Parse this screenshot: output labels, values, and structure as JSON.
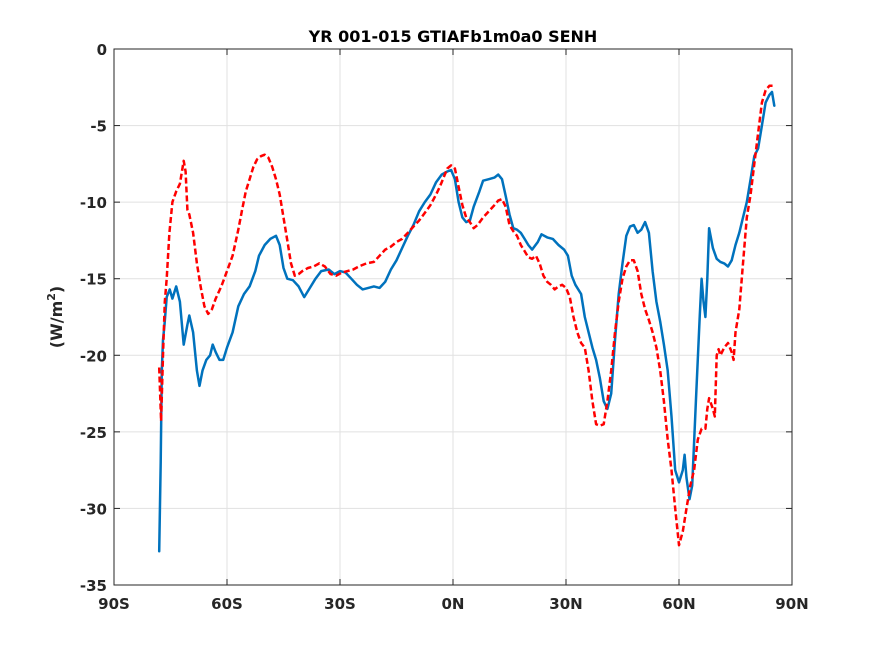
{
  "chart_data": {
    "type": "line",
    "title": "YR 001-015 GTIAFb1m0a0 SENH",
    "xlabel": "",
    "ylabel": "(W/m",
    "ylabel_sup": "2",
    "ylabel_tail": ")",
    "xlim": [
      -90,
      90
    ],
    "ylim": [
      -35,
      0
    ],
    "xticks": [
      -90,
      -60,
      -30,
      0,
      30,
      60,
      90
    ],
    "xtick_labels": [
      "90S",
      "60S",
      "30S",
      "0N",
      "30N",
      "60N",
      "90N"
    ],
    "yticks": [
      0,
      -5,
      -10,
      -15,
      -20,
      -25,
      -30,
      -35
    ],
    "ytick_labels": [
      "0",
      "-5",
      "-10",
      "-15",
      "-20",
      "-25",
      "-30",
      "-35"
    ],
    "grid": true,
    "series": [
      {
        "color": "#0072BD",
        "style": "solid",
        "points": [
          [
            -78,
            -32.8
          ],
          [
            -77.6,
            -27
          ],
          [
            -77.3,
            -21
          ],
          [
            -77,
            -19
          ],
          [
            -76.6,
            -18
          ],
          [
            -76,
            -16.2
          ],
          [
            -75.2,
            -15.7
          ],
          [
            -74.5,
            -16.3
          ],
          [
            -73.5,
            -15.5
          ],
          [
            -72.5,
            -16.5
          ],
          [
            -71.5,
            -19.3
          ],
          [
            -70.5,
            -18
          ],
          [
            -70,
            -17.4
          ],
          [
            -69,
            -18.5
          ],
          [
            -68,
            -21
          ],
          [
            -67.3,
            -22
          ],
          [
            -66.5,
            -21
          ],
          [
            -65.5,
            -20.3
          ],
          [
            -64.5,
            -20
          ],
          [
            -63.8,
            -19.3
          ],
          [
            -63,
            -19.8
          ],
          [
            -62,
            -20.3
          ],
          [
            -61,
            -20.3
          ],
          [
            -60,
            -19.5
          ],
          [
            -58.5,
            -18.5
          ],
          [
            -57,
            -16.8
          ],
          [
            -55.5,
            -16
          ],
          [
            -54,
            -15.5
          ],
          [
            -52.5,
            -14.5
          ],
          [
            -51.5,
            -13.5
          ],
          [
            -50,
            -12.8
          ],
          [
            -48.5,
            -12.4
          ],
          [
            -47,
            -12.2
          ],
          [
            -46,
            -12.8
          ],
          [
            -45,
            -14.3
          ],
          [
            -44,
            -15
          ],
          [
            -42.5,
            -15.1
          ],
          [
            -41,
            -15.5
          ],
          [
            -39.5,
            -16.2
          ],
          [
            -38,
            -15.6
          ],
          [
            -36.5,
            -15
          ],
          [
            -35,
            -14.5
          ],
          [
            -33,
            -14.4
          ],
          [
            -31.5,
            -14.7
          ],
          [
            -30,
            -14.5
          ],
          [
            -28.5,
            -14.6
          ],
          [
            -27,
            -15
          ],
          [
            -25.5,
            -15.4
          ],
          [
            -24,
            -15.7
          ],
          [
            -22.5,
            -15.6
          ],
          [
            -21,
            -15.5
          ],
          [
            -19.5,
            -15.6
          ],
          [
            -18,
            -15.2
          ],
          [
            -16.5,
            -14.4
          ],
          [
            -15,
            -13.8
          ],
          [
            -13.5,
            -13
          ],
          [
            -12,
            -12.2
          ],
          [
            -10.5,
            -11.5
          ],
          [
            -9,
            -10.6
          ],
          [
            -7.5,
            -10
          ],
          [
            -6,
            -9.5
          ],
          [
            -4.5,
            -8.7
          ],
          [
            -3,
            -8.2
          ],
          [
            -1.5,
            -8
          ],
          [
            -0.5,
            -7.9
          ],
          [
            0.5,
            -8.5
          ],
          [
            1.5,
            -10
          ],
          [
            2.5,
            -11
          ],
          [
            3.5,
            -11.3
          ],
          [
            4.5,
            -11.2
          ],
          [
            5.5,
            -10.3
          ],
          [
            7,
            -9.3
          ],
          [
            8,
            -8.6
          ],
          [
            9.5,
            -8.5
          ],
          [
            11,
            -8.4
          ],
          [
            12,
            -8.2
          ],
          [
            13,
            -8.5
          ],
          [
            14,
            -9.6
          ],
          [
            15,
            -10.8
          ],
          [
            16,
            -11.7
          ],
          [
            17,
            -11.8
          ],
          [
            18,
            -12
          ],
          [
            19,
            -12.4
          ],
          [
            20,
            -12.8
          ],
          [
            21,
            -13.1
          ],
          [
            22.5,
            -12.6
          ],
          [
            23.5,
            -12.1
          ],
          [
            25,
            -12.3
          ],
          [
            26.5,
            -12.4
          ],
          [
            28,
            -12.8
          ],
          [
            29.5,
            -13.1
          ],
          [
            30.5,
            -13.5
          ],
          [
            31.5,
            -14.8
          ],
          [
            32.5,
            -15.4
          ],
          [
            34,
            -16
          ],
          [
            35,
            -17.5
          ],
          [
            36,
            -18.5
          ],
          [
            37,
            -19.5
          ],
          [
            38,
            -20.3
          ],
          [
            39,
            -21.5
          ],
          [
            40,
            -23
          ],
          [
            41,
            -23.5
          ],
          [
            42,
            -22.5
          ],
          [
            43,
            -19
          ],
          [
            44,
            -16
          ],
          [
            45,
            -14
          ],
          [
            46,
            -12.2
          ],
          [
            47,
            -11.6
          ],
          [
            48,
            -11.5
          ],
          [
            49,
            -12
          ],
          [
            50,
            -11.8
          ],
          [
            51,
            -11.3
          ],
          [
            52,
            -12
          ],
          [
            53,
            -14.5
          ],
          [
            54,
            -16.5
          ],
          [
            55,
            -17.8
          ],
          [
            56,
            -19.3
          ],
          [
            57,
            -21
          ],
          [
            58,
            -24
          ],
          [
            59,
            -27.5
          ],
          [
            60,
            -28.3
          ],
          [
            61,
            -27.5
          ],
          [
            61.5,
            -26.5
          ],
          [
            62,
            -28
          ],
          [
            62.8,
            -29.4
          ],
          [
            63.5,
            -28.5
          ],
          [
            64.5,
            -23
          ],
          [
            65.5,
            -17.5
          ],
          [
            66,
            -15
          ],
          [
            66.5,
            -16.5
          ],
          [
            67,
            -17.5
          ],
          [
            67.5,
            -15
          ],
          [
            68,
            -11.7
          ],
          [
            69,
            -13
          ],
          [
            70,
            -13.7
          ],
          [
            71,
            -13.9
          ],
          [
            72,
            -14
          ],
          [
            73,
            -14.2
          ],
          [
            74,
            -13.8
          ],
          [
            75,
            -12.8
          ],
          [
            76,
            -12
          ],
          [
            77,
            -11
          ],
          [
            78,
            -10
          ],
          [
            79,
            -8.5
          ],
          [
            80,
            -7
          ],
          [
            81,
            -6.5
          ],
          [
            82,
            -5
          ],
          [
            83,
            -3.5
          ],
          [
            84,
            -3
          ],
          [
            84.7,
            -2.8
          ],
          [
            85.3,
            -3.7
          ]
        ]
      },
      {
        "color": "#FF0000",
        "style": "dashed",
        "points": [
          [
            -78,
            -20.8
          ],
          [
            -77.5,
            -24.3
          ],
          [
            -77,
            -20
          ],
          [
            -76.5,
            -16.5
          ],
          [
            -76,
            -15
          ],
          [
            -75.3,
            -12
          ],
          [
            -74.5,
            -10
          ],
          [
            -73.5,
            -9.3
          ],
          [
            -72.5,
            -8.8
          ],
          [
            -71.5,
            -7.3
          ],
          [
            -71,
            -8
          ],
          [
            -70.5,
            -10.5
          ],
          [
            -70,
            -10.8
          ],
          [
            -69,
            -12
          ],
          [
            -68,
            -14
          ],
          [
            -67,
            -15.5
          ],
          [
            -66,
            -16.8
          ],
          [
            -65,
            -17.3
          ],
          [
            -64,
            -17
          ],
          [
            -63,
            -16.3
          ],
          [
            -61.5,
            -15.5
          ],
          [
            -60,
            -14.5
          ],
          [
            -58.5,
            -13.5
          ],
          [
            -57,
            -11.8
          ],
          [
            -56,
            -10.5
          ],
          [
            -55,
            -9.3
          ],
          [
            -54,
            -8.5
          ],
          [
            -53,
            -7.7
          ],
          [
            -52,
            -7.2
          ],
          [
            -51,
            -7
          ],
          [
            -50,
            -6.9
          ],
          [
            -49,
            -7.1
          ],
          [
            -48,
            -7.7
          ],
          [
            -47,
            -8.5
          ],
          [
            -46,
            -9.5
          ],
          [
            -45,
            -11
          ],
          [
            -44,
            -12.5
          ],
          [
            -43,
            -14
          ],
          [
            -42,
            -14.8
          ],
          [
            -41,
            -14.7
          ],
          [
            -40,
            -14.5
          ],
          [
            -38.5,
            -14.3
          ],
          [
            -37,
            -14.2
          ],
          [
            -35.5,
            -14
          ],
          [
            -34,
            -14.2
          ],
          [
            -32.5,
            -14.7
          ],
          [
            -31,
            -14.8
          ],
          [
            -29.5,
            -14.6
          ],
          [
            -28,
            -14.5
          ],
          [
            -26.5,
            -14.4
          ],
          [
            -25,
            -14.2
          ],
          [
            -23,
            -14
          ],
          [
            -21,
            -13.9
          ],
          [
            -19.5,
            -13.5
          ],
          [
            -18,
            -13.1
          ],
          [
            -16.5,
            -12.9
          ],
          [
            -15,
            -12.6
          ],
          [
            -13.5,
            -12.4
          ],
          [
            -12,
            -12
          ],
          [
            -10.5,
            -11.6
          ],
          [
            -9,
            -11.2
          ],
          [
            -7.5,
            -10.7
          ],
          [
            -6,
            -10.2
          ],
          [
            -4.5,
            -9.5
          ],
          [
            -3.5,
            -9
          ],
          [
            -2.5,
            -8.4
          ],
          [
            -1.5,
            -7.8
          ],
          [
            -0.5,
            -7.6
          ],
          [
            0.5,
            -7.8
          ],
          [
            1.5,
            -9
          ],
          [
            2.5,
            -10.2
          ],
          [
            3.5,
            -11
          ],
          [
            4.5,
            -11.3
          ],
          [
            5.5,
            -11.7
          ],
          [
            6.5,
            -11.5
          ],
          [
            8,
            -11
          ],
          [
            9.5,
            -10.6
          ],
          [
            11,
            -10.2
          ],
          [
            12,
            -9.9
          ],
          [
            13,
            -9.8
          ],
          [
            14,
            -10.3
          ],
          [
            15,
            -11.5
          ],
          [
            16,
            -11.9
          ],
          [
            17,
            -12.2
          ],
          [
            18,
            -12.8
          ],
          [
            19,
            -13.2
          ],
          [
            20,
            -13.6
          ],
          [
            21,
            -13.7
          ],
          [
            22,
            -13.5
          ],
          [
            23,
            -14
          ],
          [
            24,
            -14.8
          ],
          [
            25,
            -15.2
          ],
          [
            26,
            -15.4
          ],
          [
            27,
            -15.7
          ],
          [
            28,
            -15.5
          ],
          [
            29,
            -15.4
          ],
          [
            30,
            -15.6
          ],
          [
            31,
            -16.2
          ],
          [
            32,
            -17.5
          ],
          [
            33,
            -18.5
          ],
          [
            34,
            -19.2
          ],
          [
            35,
            -19.5
          ],
          [
            36,
            -21
          ],
          [
            37,
            -23
          ],
          [
            38,
            -24.5
          ],
          [
            39,
            -24.6
          ],
          [
            40,
            -24.5
          ],
          [
            41,
            -23
          ],
          [
            42,
            -21
          ],
          [
            43,
            -18.5
          ],
          [
            44,
            -16.5
          ],
          [
            45,
            -15
          ],
          [
            46,
            -14.2
          ],
          [
            47,
            -13.8
          ],
          [
            48,
            -13.8
          ],
          [
            49,
            -14.5
          ],
          [
            50,
            -16
          ],
          [
            51,
            -17
          ],
          [
            52,
            -17.7
          ],
          [
            53,
            -18.5
          ],
          [
            54,
            -19.5
          ],
          [
            55,
            -21
          ],
          [
            56,
            -23
          ],
          [
            57,
            -25.5
          ],
          [
            58,
            -27.5
          ],
          [
            59,
            -30
          ],
          [
            60,
            -32.4
          ],
          [
            61,
            -31.5
          ],
          [
            62,
            -30
          ],
          [
            63,
            -28.5
          ],
          [
            64,
            -27.5
          ],
          [
            65,
            -25.5
          ],
          [
            66,
            -24.8
          ],
          [
            67,
            -24.8
          ],
          [
            67.5,
            -23.5
          ],
          [
            68,
            -22.8
          ],
          [
            69,
            -23.5
          ],
          [
            69.5,
            -24
          ],
          [
            70,
            -20
          ],
          [
            70.5,
            -19.6
          ],
          [
            71,
            -20
          ],
          [
            72,
            -19.5
          ],
          [
            73,
            -19.2
          ],
          [
            74,
            -19.8
          ],
          [
            74.5,
            -20.3
          ],
          [
            75,
            -18.5
          ],
          [
            76,
            -17
          ],
          [
            77,
            -14
          ],
          [
            78,
            -11
          ],
          [
            79,
            -9.5
          ],
          [
            80,
            -7.5
          ],
          [
            81,
            -5.5
          ],
          [
            82,
            -3.5
          ],
          [
            83,
            -2.7
          ],
          [
            84,
            -2.4
          ],
          [
            85.3,
            -2.4
          ]
        ]
      }
    ]
  }
}
